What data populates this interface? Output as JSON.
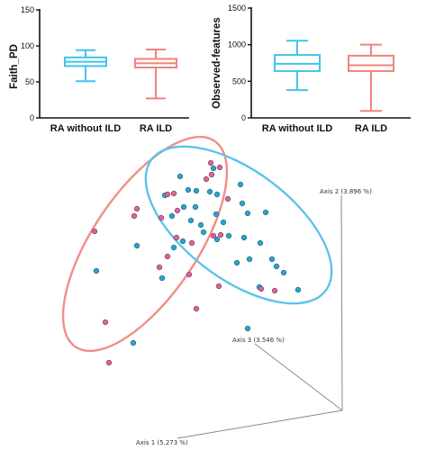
{
  "colors": {
    "ra_without_ild": "#3fc5ea",
    "ra_ild": "#f2837c",
    "pcoa_blue_fill": "#1ea7d8",
    "pcoa_pink_fill": "#e0609a",
    "ellipse_blue": "#5bc3ec",
    "ellipse_pink": "#f08e89",
    "axis_grey": "#8a8a8a"
  },
  "chart_data": [
    {
      "type": "box",
      "ylabel": "Faith_PD",
      "ylim": [
        0,
        150
      ],
      "yticks": [
        0,
        50,
        100,
        150
      ],
      "categories": [
        "RA without ILD",
        "RA ILD"
      ],
      "boxes": [
        {
          "name": "RA without ILD",
          "min": 51,
          "q1": 72,
          "median": 78,
          "q3": 84,
          "max": 94,
          "color": "#3fc5ea"
        },
        {
          "name": "RA ILD",
          "min": 27,
          "q1": 70,
          "median": 76,
          "q3": 82,
          "max": 95,
          "color": "#f2837c"
        }
      ]
    },
    {
      "type": "box",
      "ylabel": "Observed-features",
      "ylim": [
        0,
        1500
      ],
      "yticks": [
        0,
        500,
        1000,
        1500
      ],
      "categories": [
        "RA without ILD",
        "RA ILD"
      ],
      "boxes": [
        {
          "name": "RA without ILD",
          "min": 380,
          "q1": 640,
          "median": 740,
          "q3": 860,
          "max": 1055,
          "color": "#3fc5ea"
        },
        {
          "name": "RA ILD",
          "min": 95,
          "q1": 640,
          "median": 720,
          "q3": 850,
          "max": 1000,
          "color": "#f2837c"
        }
      ]
    },
    {
      "type": "scatter",
      "axis_labels": [
        "Axis 1 (5.273 %)",
        "Axis 2 (3.896 %)",
        "Axis 3 (3.546 %)"
      ],
      "grid": false,
      "series": [
        {
          "group": "RA without ILD",
          "color": "#1ea7d8",
          "points": [
            [
              200,
              196
            ],
            [
              237,
              187
            ],
            [
              183,
              217
            ],
            [
              209,
              211
            ],
            [
              218,
              212
            ],
            [
              233,
              213
            ],
            [
              267,
              205
            ],
            [
              241,
              216
            ],
            [
              204,
              230
            ],
            [
              217,
              230
            ],
            [
              191,
              240
            ],
            [
              212,
              245
            ],
            [
              240,
              238
            ],
            [
              223,
              250
            ],
            [
              269,
              226
            ],
            [
              275,
              237
            ],
            [
              295,
              236
            ],
            [
              248,
              247
            ],
            [
              226,
              258
            ],
            [
              254,
              262
            ],
            [
              203,
              268
            ],
            [
              271,
              264
            ],
            [
              241,
              266
            ],
            [
              193,
              275
            ],
            [
              152,
              273
            ],
            [
              289,
              270
            ],
            [
              302,
              288
            ],
            [
              277,
              288
            ],
            [
              263,
              292
            ],
            [
              307,
              296
            ],
            [
              315,
              303
            ],
            [
              180,
              309
            ],
            [
              107,
              301
            ],
            [
              288,
              319
            ],
            [
              331,
              322
            ],
            [
              275,
              365
            ],
            [
              148,
              381
            ]
          ]
        },
        {
          "group": "RA ILD",
          "color": "#e0609a",
          "points": [
            [
              234,
              181
            ],
            [
              244,
              186
            ],
            [
              235,
              194
            ],
            [
              229,
              199
            ],
            [
              193,
              215
            ],
            [
              186,
              216
            ],
            [
              152,
              232
            ],
            [
              197,
              234
            ],
            [
              253,
              221
            ],
            [
              149,
              240
            ],
            [
              179,
              242
            ],
            [
              196,
              264
            ],
            [
              105,
              257
            ],
            [
              237,
              262
            ],
            [
              245,
              261
            ],
            [
              213,
              270
            ],
            [
              186,
              285
            ],
            [
              177,
              297
            ],
            [
              210,
              305
            ],
            [
              243,
              318
            ],
            [
              290,
              321
            ],
            [
              305,
              323
            ],
            [
              218,
              343
            ],
            [
              117,
              358
            ],
            [
              121,
              403
            ]
          ]
        }
      ]
    }
  ]
}
